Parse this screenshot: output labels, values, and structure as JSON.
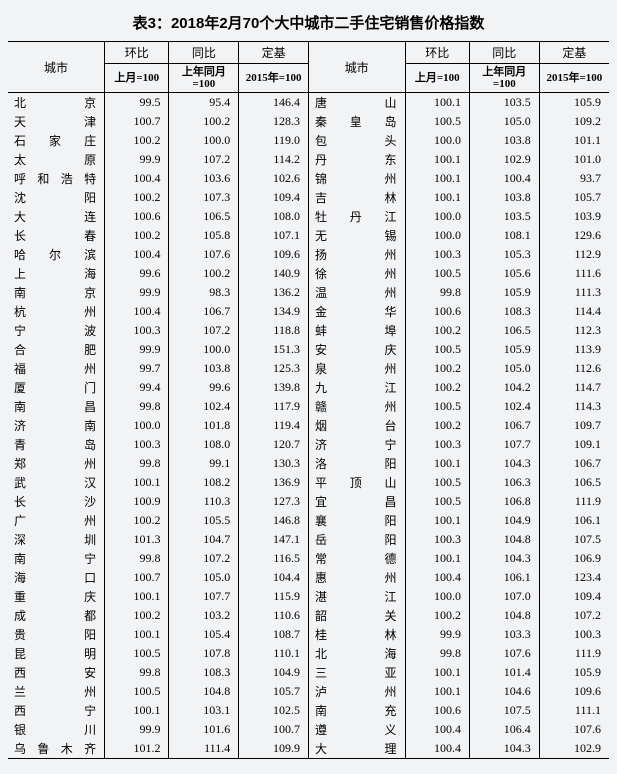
{
  "title": "表3：2018年2月70个大中城市二手住宅销售价格指数",
  "header": {
    "city": "城市",
    "mom": "环比",
    "yoy": "同比",
    "base": "定基",
    "mom_sub": "上月=100",
    "yoy_sub": "上年同月=100",
    "base_sub": "2015年=100"
  },
  "left": [
    {
      "city": "北　京",
      "mom": "99.5",
      "yoy": "95.4",
      "base": "146.4"
    },
    {
      "city": "天　津",
      "mom": "100.7",
      "yoy": "100.2",
      "base": "128.3"
    },
    {
      "city": "石 家 庄",
      "mom": "100.2",
      "yoy": "100.0",
      "base": "119.0"
    },
    {
      "city": "太　原",
      "mom": "99.9",
      "yoy": "107.2",
      "base": "114.2"
    },
    {
      "city": "呼和浩特",
      "mom": "100.4",
      "yoy": "103.6",
      "base": "102.6"
    },
    {
      "city": "沈　阳",
      "mom": "100.2",
      "yoy": "107.3",
      "base": "109.4"
    },
    {
      "city": "大　连",
      "mom": "100.6",
      "yoy": "106.5",
      "base": "108.0"
    },
    {
      "city": "长　春",
      "mom": "100.2",
      "yoy": "105.8",
      "base": "107.1"
    },
    {
      "city": "哈 尔 滨",
      "mom": "100.4",
      "yoy": "107.6",
      "base": "109.6"
    },
    {
      "city": "上　海",
      "mom": "99.6",
      "yoy": "100.2",
      "base": "140.9"
    },
    {
      "city": "南　京",
      "mom": "99.9",
      "yoy": "98.3",
      "base": "136.2"
    },
    {
      "city": "杭　州",
      "mom": "100.4",
      "yoy": "106.7",
      "base": "134.9"
    },
    {
      "city": "宁　波",
      "mom": "100.3",
      "yoy": "107.2",
      "base": "118.8"
    },
    {
      "city": "合　肥",
      "mom": "99.9",
      "yoy": "100.0",
      "base": "151.3"
    },
    {
      "city": "福　州",
      "mom": "99.7",
      "yoy": "103.8",
      "base": "125.3"
    },
    {
      "city": "厦　门",
      "mom": "99.4",
      "yoy": "99.6",
      "base": "139.8"
    },
    {
      "city": "南　昌",
      "mom": "99.8",
      "yoy": "102.4",
      "base": "117.9"
    },
    {
      "city": "济　南",
      "mom": "100.0",
      "yoy": "101.8",
      "base": "119.4"
    },
    {
      "city": "青　岛",
      "mom": "100.3",
      "yoy": "108.0",
      "base": "120.7"
    },
    {
      "city": "郑　州",
      "mom": "99.8",
      "yoy": "99.1",
      "base": "130.3"
    },
    {
      "city": "武　汉",
      "mom": "100.1",
      "yoy": "108.2",
      "base": "136.9"
    },
    {
      "city": "长　沙",
      "mom": "100.9",
      "yoy": "110.3",
      "base": "127.3"
    },
    {
      "city": "广　州",
      "mom": "100.2",
      "yoy": "105.5",
      "base": "146.8"
    },
    {
      "city": "深　圳",
      "mom": "101.3",
      "yoy": "104.7",
      "base": "147.1"
    },
    {
      "city": "南　宁",
      "mom": "99.8",
      "yoy": "107.2",
      "base": "116.5"
    },
    {
      "city": "海　口",
      "mom": "100.7",
      "yoy": "105.0",
      "base": "104.4"
    },
    {
      "city": "重　庆",
      "mom": "100.1",
      "yoy": "107.7",
      "base": "115.9"
    },
    {
      "city": "成　都",
      "mom": "100.2",
      "yoy": "103.2",
      "base": "110.6"
    },
    {
      "city": "贵　阳",
      "mom": "100.1",
      "yoy": "105.4",
      "base": "108.7"
    },
    {
      "city": "昆　明",
      "mom": "100.5",
      "yoy": "107.8",
      "base": "110.1"
    },
    {
      "city": "西　安",
      "mom": "99.8",
      "yoy": "108.3",
      "base": "104.9"
    },
    {
      "city": "兰　州",
      "mom": "100.5",
      "yoy": "104.8",
      "base": "105.7"
    },
    {
      "city": "西　宁",
      "mom": "100.1",
      "yoy": "103.1",
      "base": "102.5"
    },
    {
      "city": "银　川",
      "mom": "99.9",
      "yoy": "101.6",
      "base": "100.7"
    },
    {
      "city": "乌鲁木齐",
      "mom": "101.2",
      "yoy": "111.4",
      "base": "109.9"
    }
  ],
  "right": [
    {
      "city": "唐　山",
      "mom": "100.1",
      "yoy": "103.5",
      "base": "105.9"
    },
    {
      "city": "秦 皇 岛",
      "mom": "100.5",
      "yoy": "105.0",
      "base": "109.2"
    },
    {
      "city": "包　头",
      "mom": "100.0",
      "yoy": "103.8",
      "base": "101.1"
    },
    {
      "city": "丹　东",
      "mom": "100.1",
      "yoy": "102.9",
      "base": "101.0"
    },
    {
      "city": "锦　州",
      "mom": "100.1",
      "yoy": "100.4",
      "base": "93.7"
    },
    {
      "city": "吉　林",
      "mom": "100.1",
      "yoy": "103.8",
      "base": "105.7"
    },
    {
      "city": "牡 丹 江",
      "mom": "100.0",
      "yoy": "103.5",
      "base": "103.9"
    },
    {
      "city": "无　锡",
      "mom": "100.0",
      "yoy": "108.1",
      "base": "129.6"
    },
    {
      "city": "扬　州",
      "mom": "100.3",
      "yoy": "105.3",
      "base": "112.9"
    },
    {
      "city": "徐　州",
      "mom": "100.5",
      "yoy": "105.6",
      "base": "111.6"
    },
    {
      "city": "温　州",
      "mom": "99.8",
      "yoy": "105.9",
      "base": "111.3"
    },
    {
      "city": "金　华",
      "mom": "100.6",
      "yoy": "108.3",
      "base": "114.4"
    },
    {
      "city": "蚌　埠",
      "mom": "100.2",
      "yoy": "106.5",
      "base": "112.3"
    },
    {
      "city": "安　庆",
      "mom": "100.5",
      "yoy": "105.9",
      "base": "113.9"
    },
    {
      "city": "泉　州",
      "mom": "100.2",
      "yoy": "105.0",
      "base": "112.6"
    },
    {
      "city": "九　江",
      "mom": "100.2",
      "yoy": "104.2",
      "base": "114.7"
    },
    {
      "city": "赣　州",
      "mom": "100.5",
      "yoy": "102.4",
      "base": "114.3"
    },
    {
      "city": "烟　台",
      "mom": "100.2",
      "yoy": "106.7",
      "base": "109.7"
    },
    {
      "city": "济　宁",
      "mom": "100.3",
      "yoy": "107.7",
      "base": "109.1"
    },
    {
      "city": "洛　阳",
      "mom": "100.1",
      "yoy": "104.3",
      "base": "106.7"
    },
    {
      "city": "平 顶 山",
      "mom": "100.5",
      "yoy": "106.3",
      "base": "106.5"
    },
    {
      "city": "宜　昌",
      "mom": "100.5",
      "yoy": "106.8",
      "base": "111.9"
    },
    {
      "city": "襄　阳",
      "mom": "100.1",
      "yoy": "104.9",
      "base": "106.1"
    },
    {
      "city": "岳　阳",
      "mom": "100.3",
      "yoy": "104.8",
      "base": "107.5"
    },
    {
      "city": "常　德",
      "mom": "100.1",
      "yoy": "104.3",
      "base": "106.9"
    },
    {
      "city": "惠　州",
      "mom": "100.4",
      "yoy": "106.1",
      "base": "123.4"
    },
    {
      "city": "湛　江",
      "mom": "100.0",
      "yoy": "107.0",
      "base": "109.4"
    },
    {
      "city": "韶　关",
      "mom": "100.2",
      "yoy": "104.8",
      "base": "107.2"
    },
    {
      "city": "桂　林",
      "mom": "99.9",
      "yoy": "103.3",
      "base": "100.3"
    },
    {
      "city": "北　海",
      "mom": "99.8",
      "yoy": "107.6",
      "base": "111.9"
    },
    {
      "city": "三　亚",
      "mom": "100.1",
      "yoy": "101.4",
      "base": "105.9"
    },
    {
      "city": "泸　州",
      "mom": "100.1",
      "yoy": "104.6",
      "base": "109.6"
    },
    {
      "city": "南　充",
      "mom": "100.6",
      "yoy": "107.5",
      "base": "111.1"
    },
    {
      "city": "遵　义",
      "mom": "100.4",
      "yoy": "106.4",
      "base": "107.6"
    },
    {
      "city": "大　理",
      "mom": "100.4",
      "yoy": "104.3",
      "base": "102.9"
    }
  ]
}
